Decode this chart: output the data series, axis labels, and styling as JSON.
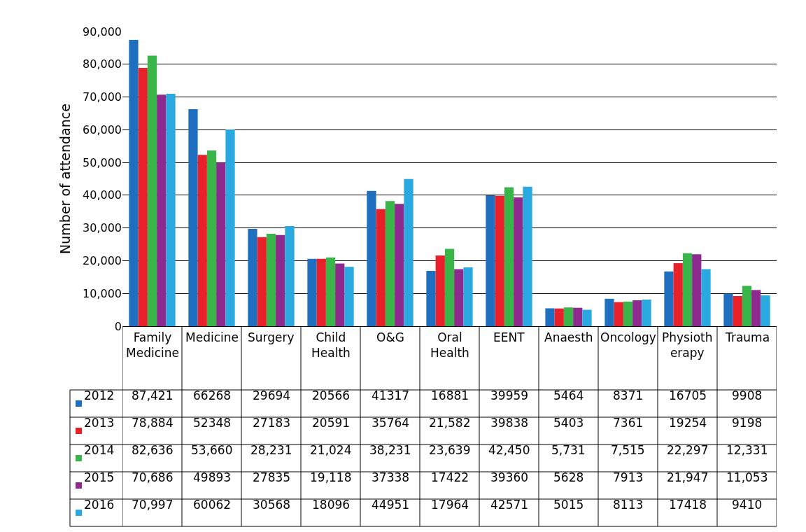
{
  "chart_data": {
    "type": "bar",
    "ylabel": "Number of attendance",
    "categories": [
      "Family Medicine",
      "Medicine",
      "Surgery",
      "Child Health",
      "O&G",
      "Oral Health",
      "EENT",
      "Anaesth",
      "Oncology",
      "Physiotherapy",
      "Trauma"
    ],
    "series": [
      {
        "name": "2012",
        "color": "#1f6fc0",
        "values": [
          87421,
          66268,
          29694,
          20566,
          41317,
          16881,
          39959,
          5464,
          8371,
          16705,
          9908
        ],
        "value_labels": [
          "87,421",
          "66268",
          "29694",
          "20566",
          "41317",
          "16881",
          "39959",
          "5464",
          "8371",
          "16705",
          "9908"
        ]
      },
      {
        "name": "2013",
        "color": "#e8202a",
        "values": [
          78884,
          52348,
          27183,
          20591,
          35764,
          21582,
          39838,
          5403,
          7361,
          19254,
          9198
        ],
        "value_labels": [
          "78,884",
          "52348",
          "27183",
          "20591",
          "35764",
          "21,582",
          "39838",
          "5403",
          "7361",
          "19254",
          "9198"
        ]
      },
      {
        "name": "2014",
        "color": "#3ab54a",
        "values": [
          82636,
          53660,
          28231,
          21024,
          38231,
          23639,
          42450,
          5731,
          7515,
          22297,
          12331
        ],
        "value_labels": [
          "82,636",
          "53,660",
          "28,231",
          "21,024",
          "38,231",
          "23,639",
          "42,450",
          "5,731",
          "7,515",
          "22,297",
          "12,331"
        ]
      },
      {
        "name": "2015",
        "color": "#8e2a8e",
        "values": [
          70686,
          49893,
          27835,
          19118,
          37338,
          17422,
          39360,
          5628,
          7913,
          21947,
          11053
        ],
        "value_labels": [
          "70,686",
          "49893",
          "27835",
          "19,118",
          "37338",
          "17422",
          "39360",
          "5628",
          "7913",
          "21,947",
          "11,053"
        ]
      },
      {
        "name": "2016",
        "color": "#29a9e0",
        "values": [
          70997,
          60062,
          30568,
          18096,
          44951,
          17964,
          42571,
          5015,
          8113,
          17418,
          9410
        ],
        "value_labels": [
          "70,997",
          "60062",
          "30568",
          "18096",
          "44951",
          "17964",
          "42571",
          "5015",
          "8113",
          "17418",
          "9410"
        ]
      }
    ],
    "ylim": [
      0,
      90000
    ],
    "yticks": [
      0,
      {
        "value": 10000,
        "label": "10,000"
      },
      {
        "value": 20000,
        "label": "20,000"
      },
      {
        "value": 30000,
        "label": "30,000"
      },
      {
        "value": 40000,
        "label": "40,000"
      },
      {
        "value": 50000,
        "label": "50,000"
      },
      {
        "value": 60000,
        "label": "60,000"
      },
      {
        "value": 70000,
        "label": "70,000"
      },
      {
        "value": 80000,
        "label": "80,000"
      },
      {
        "value": 90000,
        "label": "90,000"
      }
    ],
    "grid": "y",
    "legend": "bottom"
  }
}
